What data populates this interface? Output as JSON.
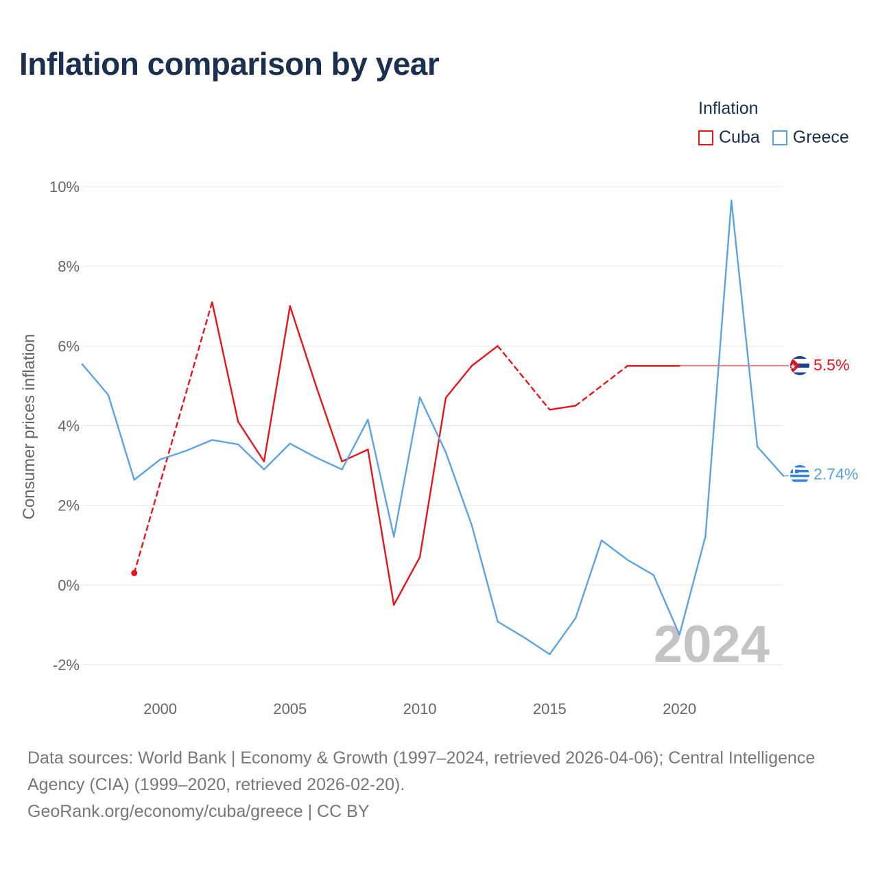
{
  "title": "Inflation comparison by year",
  "legend": {
    "title": "Inflation",
    "items": [
      {
        "name": "Cuba",
        "color": "#e8141b"
      },
      {
        "name": "Greece",
        "color": "#5ba3e4"
      }
    ]
  },
  "year_watermark": "2024",
  "footer": {
    "sources": "Data sources: World Bank | Economy & Growth (1997–2024, retrieved 2026-04-06); Central Intelligence Agency (CIA) (1999–2020, retrieved 2026-02-20).",
    "link": "GeoRank.org/economy/cuba/greece | CC BY"
  },
  "chart_data": {
    "type": "line",
    "title": "Inflation comparison by year",
    "xlabel": "",
    "ylabel": "Consumer prices inflation",
    "xlim": [
      1997,
      2024
    ],
    "ylim": [
      -2,
      10
    ],
    "x_ticks": [
      2000,
      2005,
      2010,
      2015,
      2020
    ],
    "y_ticks": [
      -2,
      0,
      2,
      4,
      6,
      8,
      10
    ],
    "y_tick_labels": [
      "-2%",
      "0%",
      "2%",
      "4%",
      "6%",
      "8%",
      "10%"
    ],
    "grid": true,
    "legend_position": "top-right",
    "series": [
      {
        "name": "Cuba",
        "color": "#e8141b",
        "end_label": "5.5%",
        "points": [
          {
            "x": 1999,
            "y": 0.3
          },
          {
            "x": 2002,
            "y": 7.1
          },
          {
            "x": 2003,
            "y": 4.1
          },
          {
            "x": 2004,
            "y": 3.1
          },
          {
            "x": 2005,
            "y": 7.0
          },
          {
            "x": 2006,
            "y": 5.0
          },
          {
            "x": 2007,
            "y": 3.1
          },
          {
            "x": 2008,
            "y": 3.4
          },
          {
            "x": 2009,
            "y": -0.5
          },
          {
            "x": 2010,
            "y": 0.7
          },
          {
            "x": 2011,
            "y": 4.7
          },
          {
            "x": 2012,
            "y": 5.5
          },
          {
            "x": 2013,
            "y": 6.0
          },
          {
            "x": 2015,
            "y": 4.4
          },
          {
            "x": 2016,
            "y": 4.5
          },
          {
            "x": 2018,
            "y": 5.5
          },
          {
            "x": 2019,
            "y": 5.5
          },
          {
            "x": 2020,
            "y": 5.5
          }
        ],
        "last_value": 5.5
      },
      {
        "name": "Greece",
        "color": "#5ba3e4",
        "end_label": "2.74%",
        "points": [
          {
            "x": 1997,
            "y": 5.54
          },
          {
            "x": 1998,
            "y": 4.77
          },
          {
            "x": 1999,
            "y": 2.64
          },
          {
            "x": 2000,
            "y": 3.15
          },
          {
            "x": 2001,
            "y": 3.37
          },
          {
            "x": 2002,
            "y": 3.64
          },
          {
            "x": 2003,
            "y": 3.53
          },
          {
            "x": 2004,
            "y": 2.9
          },
          {
            "x": 2005,
            "y": 3.55
          },
          {
            "x": 2006,
            "y": 3.2
          },
          {
            "x": 2007,
            "y": 2.9
          },
          {
            "x": 2008,
            "y": 4.15
          },
          {
            "x": 2009,
            "y": 1.21
          },
          {
            "x": 2010,
            "y": 4.71
          },
          {
            "x": 2011,
            "y": 3.33
          },
          {
            "x": 2012,
            "y": 1.5
          },
          {
            "x": 2013,
            "y": -0.92
          },
          {
            "x": 2014,
            "y": -1.31
          },
          {
            "x": 2015,
            "y": -1.74
          },
          {
            "x": 2016,
            "y": -0.83
          },
          {
            "x": 2017,
            "y": 1.12
          },
          {
            "x": 2018,
            "y": 0.63
          },
          {
            "x": 2019,
            "y": 0.25
          },
          {
            "x": 2020,
            "y": -1.25
          },
          {
            "x": 2021,
            "y": 1.22
          },
          {
            "x": 2022,
            "y": 9.65
          },
          {
            "x": 2023,
            "y": 3.47
          },
          {
            "x": 2024,
            "y": 2.74
          }
        ],
        "last_value": 2.74
      }
    ]
  }
}
